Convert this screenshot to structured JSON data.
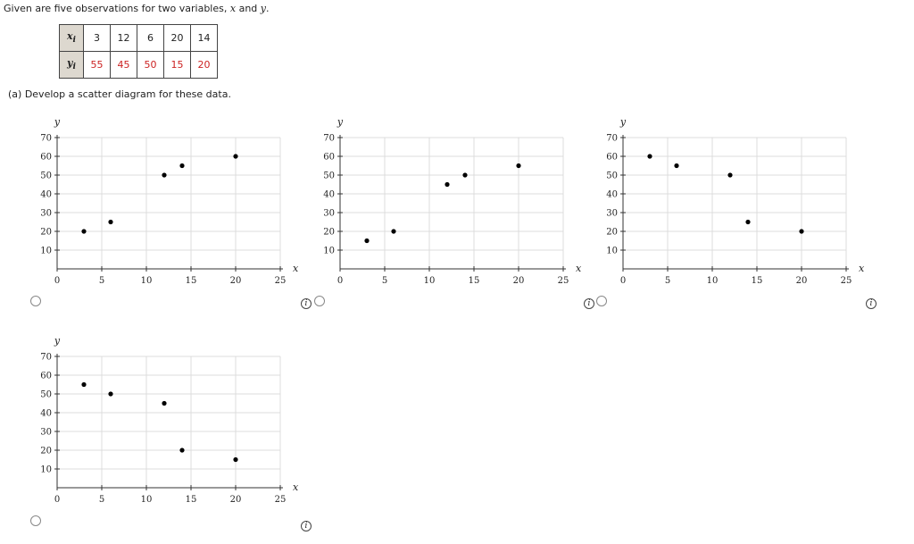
{
  "intro": {
    "prefix": "Given are five observations for two variables, ",
    "x": "x",
    "and": " and ",
    "y": "y",
    "suffix": "."
  },
  "table": {
    "x_header": "x",
    "x_sub": "i",
    "y_header": "y",
    "y_sub": "i",
    "x_values": [
      "3",
      "12",
      "6",
      "20",
      "14"
    ],
    "y_values": [
      "55",
      "45",
      "50",
      "15",
      "20"
    ]
  },
  "question": "(a)  Develop a scatter diagram for these data.",
  "info_glyph": "i",
  "chart_data": [
    {
      "type": "scatter",
      "xlabel": "x",
      "ylabel": "y",
      "xlim": [
        0,
        25
      ],
      "ylim": [
        0,
        70
      ],
      "xticks": [
        "0",
        "5",
        "10",
        "15",
        "20",
        "25"
      ],
      "yticks": [
        "10",
        "20",
        "30",
        "40",
        "50",
        "60",
        "70"
      ],
      "grid": true,
      "points": [
        [
          3,
          20
        ],
        [
          6,
          25
        ],
        [
          12,
          50
        ],
        [
          14,
          55
        ],
        [
          20,
          60
        ]
      ]
    },
    {
      "type": "scatter",
      "xlabel": "x",
      "ylabel": "y",
      "xlim": [
        0,
        25
      ],
      "ylim": [
        0,
        70
      ],
      "xticks": [
        "0",
        "5",
        "10",
        "15",
        "20",
        "25"
      ],
      "yticks": [
        "10",
        "20",
        "30",
        "40",
        "50",
        "60",
        "70"
      ],
      "grid": true,
      "points": [
        [
          3,
          15
        ],
        [
          6,
          20
        ],
        [
          12,
          45
        ],
        [
          14,
          50
        ],
        [
          20,
          55
        ]
      ]
    },
    {
      "type": "scatter",
      "xlabel": "x",
      "ylabel": "y",
      "xlim": [
        0,
        25
      ],
      "ylim": [
        0,
        70
      ],
      "xticks": [
        "0",
        "5",
        "10",
        "15",
        "20",
        "25"
      ],
      "yticks": [
        "10",
        "20",
        "30",
        "40",
        "50",
        "60",
        "70"
      ],
      "grid": true,
      "points": [
        [
          3,
          60
        ],
        [
          6,
          55
        ],
        [
          12,
          50
        ],
        [
          14,
          25
        ],
        [
          20,
          20
        ]
      ]
    },
    {
      "type": "scatter",
      "xlabel": "x",
      "ylabel": "y",
      "xlim": [
        0,
        25
      ],
      "ylim": [
        0,
        70
      ],
      "xticks": [
        "0",
        "5",
        "10",
        "15",
        "20",
        "25"
      ],
      "yticks": [
        "10",
        "20",
        "30",
        "40",
        "50",
        "60",
        "70"
      ],
      "grid": true,
      "points": [
        [
          3,
          55
        ],
        [
          6,
          50
        ],
        [
          12,
          45
        ],
        [
          14,
          20
        ],
        [
          20,
          15
        ]
      ]
    }
  ]
}
